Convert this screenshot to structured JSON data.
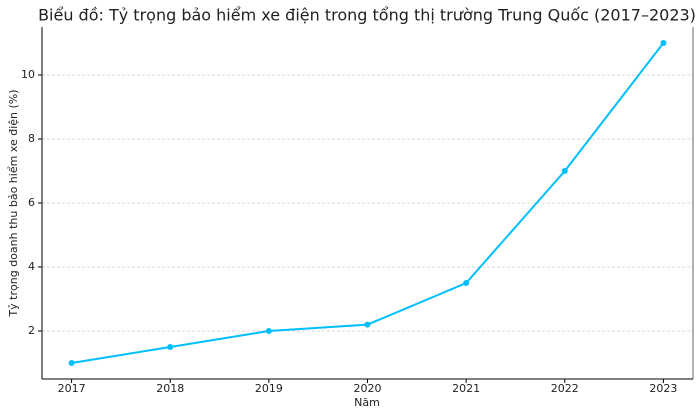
{
  "chart_data": {
    "type": "line",
    "title": "Biểu đồ: Tỷ trọng bảo hiểm xe điện trong tổng thị trường Trung Quốc (2017–2023)",
    "x_label": "Năm",
    "y_label": "Tỷ trọng doanh thu bảo hiểm xe điện (%)",
    "x": [
      2017,
      2018,
      2019,
      2020,
      2021,
      2022,
      2023
    ],
    "series": [
      {
        "name": "Tỷ trọng",
        "color": "#00bfff",
        "values": [
          1,
          1.5,
          2,
          2.2,
          3.5,
          7,
          11
        ]
      }
    ],
    "xlim": [
      2016.7,
      2023.3
    ],
    "xticks": [
      2017,
      2018,
      2019,
      2020,
      2021,
      2022,
      2023
    ],
    "ylim": [
      0.5,
      11.5
    ],
    "yticks": [
      2,
      4,
      6,
      8,
      10
    ],
    "grid": true
  }
}
